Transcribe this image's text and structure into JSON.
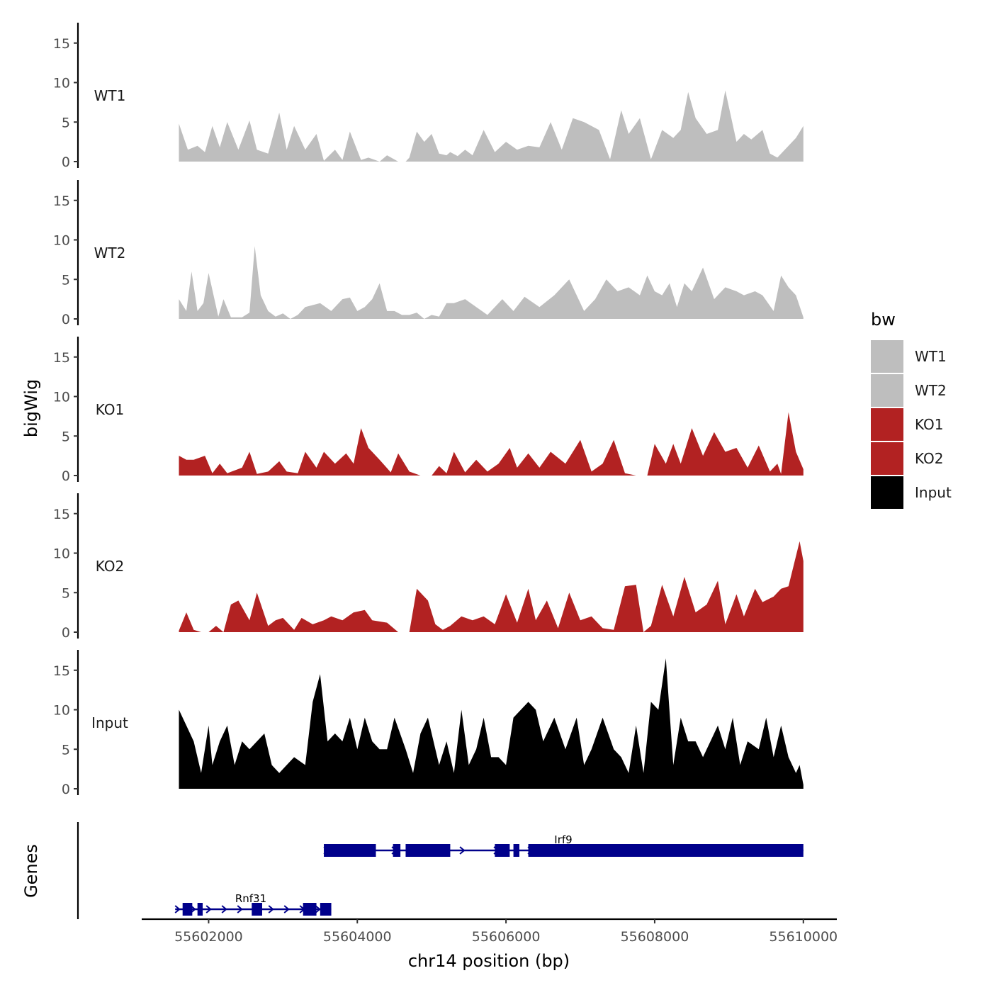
{
  "chart_data": {
    "type": "area",
    "title": "",
    "xlabel": "chr14 position (bp)",
    "ylabel": "bigWig",
    "genes_label": "Genes",
    "xlim": [
      55601100,
      55610450
    ],
    "ylim": [
      0,
      17.5
    ],
    "x_ticks": [
      55602000,
      55604000,
      55606000,
      55608000,
      55610000
    ],
    "x_tick_labels": [
      "55602000",
      "55604000",
      "55606000",
      "55608000",
      "55610000"
    ],
    "y_ticks": [
      0,
      5,
      10,
      15
    ],
    "y_tick_labels": [
      "0",
      "5",
      "10",
      "15"
    ],
    "legend": {
      "title": "bw",
      "entries": [
        {
          "label": "WT1",
          "color": "#bebebe"
        },
        {
          "label": "WT2",
          "color": "#bebebe"
        },
        {
          "label": "KO1",
          "color": "#b22222"
        },
        {
          "label": "KO2",
          "color": "#b22222"
        },
        {
          "label": "Input",
          "color": "#000000"
        }
      ]
    },
    "series": [
      {
        "name": "WT1",
        "color": "#bebebe",
        "x": [
          55601600,
          55601720,
          55601850,
          55601950,
          55602050,
          55602150,
          55602250,
          55602400,
          55602550,
          55602650,
          55602800,
          55602950,
          55603050,
          55603150,
          55603300,
          55603450,
          55603550,
          55603700,
          55603800,
          55603900,
          55604050,
          55604150,
          55604300,
          55604400,
          55604550,
          55604650,
          55604700,
          55604800,
          55604900,
          55605000,
          55605100,
          55605200,
          55605250,
          55605350,
          55605450,
          55605550,
          55605700,
          55605850,
          55606000,
          55606150,
          55606300,
          55606450,
          55606600,
          55606750,
          55606900,
          55607050,
          55607250,
          55607400,
          55607550,
          55607650,
          55607800,
          55607950,
          55608100,
          55608250,
          55608350,
          55608450,
          55608550,
          55608700,
          55608850,
          55608950,
          55609100,
          55609200,
          55609300,
          55609450,
          55609550,
          55609650,
          55609800,
          55609900,
          55610000
        ],
        "y": [
          4.8,
          1.5,
          2.0,
          1.2,
          4.5,
          1.8,
          5.0,
          1.5,
          5.2,
          1.5,
          1.0,
          6.2,
          1.5,
          4.5,
          1.5,
          3.5,
          0.1,
          1.5,
          0.2,
          3.8,
          0.2,
          0.5,
          0,
          0.8,
          0,
          0,
          0.5,
          3.8,
          2.5,
          3.5,
          1.0,
          0.8,
          1.2,
          0.7,
          1.5,
          0.8,
          4.0,
          1.2,
          2.5,
          1.5,
          2.0,
          1.8,
          5.0,
          1.5,
          5.5,
          5.0,
          4.0,
          0.3,
          6.5,
          3.5,
          5.5,
          0.3,
          4.0,
          3.0,
          4.0,
          8.8,
          5.5,
          3.5,
          4.0,
          9.0,
          2.5,
          3.5,
          2.8,
          4.0,
          1.0,
          0.5,
          2.0,
          3.0,
          4.5
        ]
      },
      {
        "name": "WT2",
        "color": "#bebebe",
        "x": [
          55601600,
          55601700,
          55601770,
          55601850,
          55601930,
          55602000,
          55602130,
          55602200,
          55602300,
          55602450,
          55602550,
          55602620,
          55602700,
          55602800,
          55602900,
          55603000,
          55603100,
          55603200,
          55603300,
          55603500,
          55603650,
          55603800,
          55603900,
          55604000,
          55604100,
          55604200,
          55604300,
          55604400,
          55604500,
          55604600,
          55604700,
          55604800,
          55604900,
          55605000,
          55605100,
          55605200,
          55605300,
          55605450,
          55605600,
          55605750,
          55605950,
          55606100,
          55606250,
          55606450,
          55606650,
          55606850,
          55607050,
          55607200,
          55607350,
          55607500,
          55607650,
          55607800,
          55607900,
          55608000,
          55608100,
          55608200,
          55608300,
          55608400,
          55608500,
          55608650,
          55608800,
          55608950,
          55609100,
          55609200,
          55609350,
          55609450,
          55609600,
          55609700,
          55609800,
          55609900,
          55610000
        ],
        "y": [
          2.5,
          1.0,
          6.0,
          1.0,
          2.0,
          5.8,
          0.3,
          2.5,
          0.2,
          0.2,
          0.8,
          9.2,
          3.0,
          1.0,
          0.3,
          0.7,
          0,
          0.5,
          1.5,
          2.0,
          1.0,
          2.5,
          2.7,
          1.0,
          1.5,
          2.5,
          4.5,
          1.0,
          1.0,
          0.5,
          0.5,
          0.8,
          0,
          0.5,
          0.3,
          2.0,
          2.0,
          2.5,
          1.5,
          0.5,
          2.5,
          1.0,
          2.8,
          1.5,
          3.0,
          5.0,
          1.0,
          2.5,
          5.0,
          3.5,
          4.0,
          3.0,
          5.5,
          3.5,
          3.0,
          4.5,
          1.5,
          4.5,
          3.5,
          6.5,
          2.5,
          4.0,
          3.5,
          3.0,
          3.5,
          3.0,
          1.0,
          5.5,
          4.0,
          3.0,
          0.2
        ]
      },
      {
        "name": "KO1",
        "color": "#b22222",
        "x": [
          55601600,
          55601700,
          55601800,
          55601950,
          55602050,
          55602150,
          55602250,
          55602450,
          55602550,
          55602650,
          55602800,
          55602950,
          55603050,
          55603200,
          55603300,
          55603450,
          55603550,
          55603700,
          55603850,
          55603950,
          55604050,
          55604150,
          55604300,
          55604450,
          55604550,
          55604700,
          55604850,
          55605000,
          55605100,
          55605200,
          55605300,
          55605450,
          55605600,
          55605750,
          55605900,
          55606050,
          55606150,
          55606300,
          55606450,
          55606600,
          55606800,
          55607000,
          55607150,
          55607300,
          55607450,
          55607600,
          55607750,
          55607900,
          55608000,
          55608150,
          55608250,
          55608350,
          55608500,
          55608650,
          55608800,
          55608950,
          55609100,
          55609250,
          55609400,
          55609550,
          55609650,
          55609700,
          55609800,
          55609900,
          55610000
        ],
        "y": [
          2.5,
          2.0,
          2.0,
          2.5,
          0.3,
          1.5,
          0.3,
          1.0,
          3.0,
          0.2,
          0.5,
          1.8,
          0.5,
          0.3,
          3.0,
          1.0,
          3.0,
          1.5,
          2.8,
          1.5,
          6.0,
          3.5,
          2.0,
          0.4,
          2.8,
          0.5,
          0,
          0,
          1.2,
          0.3,
          3.0,
          0.4,
          2.0,
          0.5,
          1.5,
          3.5,
          1.0,
          2.8,
          1.0,
          3.0,
          1.5,
          4.5,
          0.5,
          1.5,
          4.5,
          0.3,
          0,
          0,
          4.0,
          1.5,
          4.0,
          1.5,
          6.0,
          2.5,
          5.5,
          3.0,
          3.5,
          1.0,
          3.8,
          0.5,
          1.5,
          0.2,
          8.0,
          3.0,
          0.8
        ]
      },
      {
        "name": "KO2",
        "color": "#b22222",
        "x": [
          55601600,
          55601700,
          55601800,
          55601900,
          55602000,
          55602100,
          55602200,
          55602300,
          55602400,
          55602550,
          55602650,
          55602800,
          55602900,
          55603000,
          55603150,
          55603250,
          55603400,
          55603550,
          55603650,
          55603800,
          55603950,
          55604100,
          55604200,
          55604400,
          55604550,
          55604700,
          55604800,
          55604950,
          55605050,
          55605150,
          55605250,
          55605400,
          55605550,
          55605700,
          55605850,
          55606000,
          55606150,
          55606300,
          55606400,
          55606550,
          55606700,
          55606850,
          55607000,
          55607150,
          55607300,
          55607450,
          55607600,
          55607750,
          55607850,
          55607950,
          55608100,
          55608250,
          55608400,
          55608550,
          55608700,
          55608850,
          55608950,
          55609100,
          55609200,
          55609350,
          55609450,
          55609600,
          55609700,
          55609800,
          55609950,
          55610000
        ],
        "y": [
          0.2,
          2.5,
          0.3,
          0,
          0,
          0.8,
          0,
          3.5,
          4.0,
          1.5,
          5.0,
          0.8,
          1.5,
          1.8,
          0.3,
          1.8,
          1.0,
          1.5,
          2.0,
          1.5,
          2.5,
          2.8,
          1.5,
          1.2,
          0,
          0,
          5.5,
          4.0,
          1.0,
          0.3,
          0.8,
          2.0,
          1.5,
          2.0,
          1.0,
          4.8,
          1.2,
          5.5,
          1.5,
          4.0,
          0.5,
          5.0,
          1.5,
          2.0,
          0.5,
          0.3,
          5.8,
          6.0,
          0,
          0.8,
          6.0,
          2.0,
          7.0,
          2.5,
          3.5,
          6.5,
          1.0,
          4.8,
          2.0,
          5.5,
          3.8,
          4.5,
          5.5,
          5.8,
          11.5,
          9.0
        ]
      },
      {
        "name": "Input",
        "color": "#000000",
        "x": [
          55601600,
          55601700,
          55601800,
          55601900,
          55602000,
          55602050,
          55602150,
          55602250,
          55602350,
          55602450,
          55602550,
          55602650,
          55602750,
          55602850,
          55602950,
          55603050,
          55603150,
          55603300,
          55603400,
          55603500,
          55603600,
          55603700,
          55603800,
          55603900,
          55604000,
          55604100,
          55604200,
          55604300,
          55604400,
          55604500,
          55604650,
          55604750,
          55604850,
          55604950,
          55605100,
          55605200,
          55605300,
          55605400,
          55605500,
          55605600,
          55605700,
          55605800,
          55605900,
          55606000,
          55606100,
          55606200,
          55606300,
          55606400,
          55606500,
          55606650,
          55606800,
          55606950,
          55607050,
          55607150,
          55607300,
          55607450,
          55607550,
          55607650,
          55607750,
          55607850,
          55607950,
          55608050,
          55608150,
          55608250,
          55608350,
          55608450,
          55608550,
          55608650,
          55608750,
          55608850,
          55608950,
          55609050,
          55609150,
          55609250,
          55609400,
          55609500,
          55609600,
          55609700,
          55609800,
          55609900,
          55609950,
          55610000
        ],
        "y": [
          10,
          8,
          6,
          2,
          8,
          3,
          6,
          8,
          3,
          6,
          5,
          6,
          7,
          3,
          2,
          3,
          4,
          3,
          11,
          14.5,
          6,
          7,
          6,
          9,
          5,
          9,
          6,
          5,
          5,
          9,
          5,
          2,
          7,
          9,
          3,
          6,
          2,
          10,
          3,
          5,
          9,
          4,
          4,
          3,
          9,
          10,
          11,
          10,
          6,
          9,
          5,
          9,
          3,
          5,
          9,
          5,
          4,
          2,
          8,
          2,
          11,
          10,
          16.5,
          3,
          9,
          6,
          6,
          4,
          6,
          8,
          5,
          9,
          3,
          6,
          5,
          9,
          4,
          8,
          4,
          2,
          3,
          0.5
        ]
      }
    ],
    "genes": [
      {
        "name": "Irf9",
        "start": 55603550,
        "end": 55610000,
        "exons": [
          [
            55603550,
            55604250
          ],
          [
            55604480,
            55604580
          ],
          [
            55604650,
            55605250
          ],
          [
            55605850,
            55606050
          ],
          [
            55606100,
            55606180
          ],
          [
            55606300,
            55610000
          ]
        ]
      },
      {
        "name": "Rnf31",
        "start": 55601550,
        "end": 55603650,
        "exons": [
          [
            55601650,
            55601780
          ],
          [
            55601850,
            55601920
          ],
          [
            55602580,
            55602720
          ],
          [
            55603270,
            55603450
          ],
          [
            55603500,
            55603650
          ]
        ]
      }
    ]
  }
}
